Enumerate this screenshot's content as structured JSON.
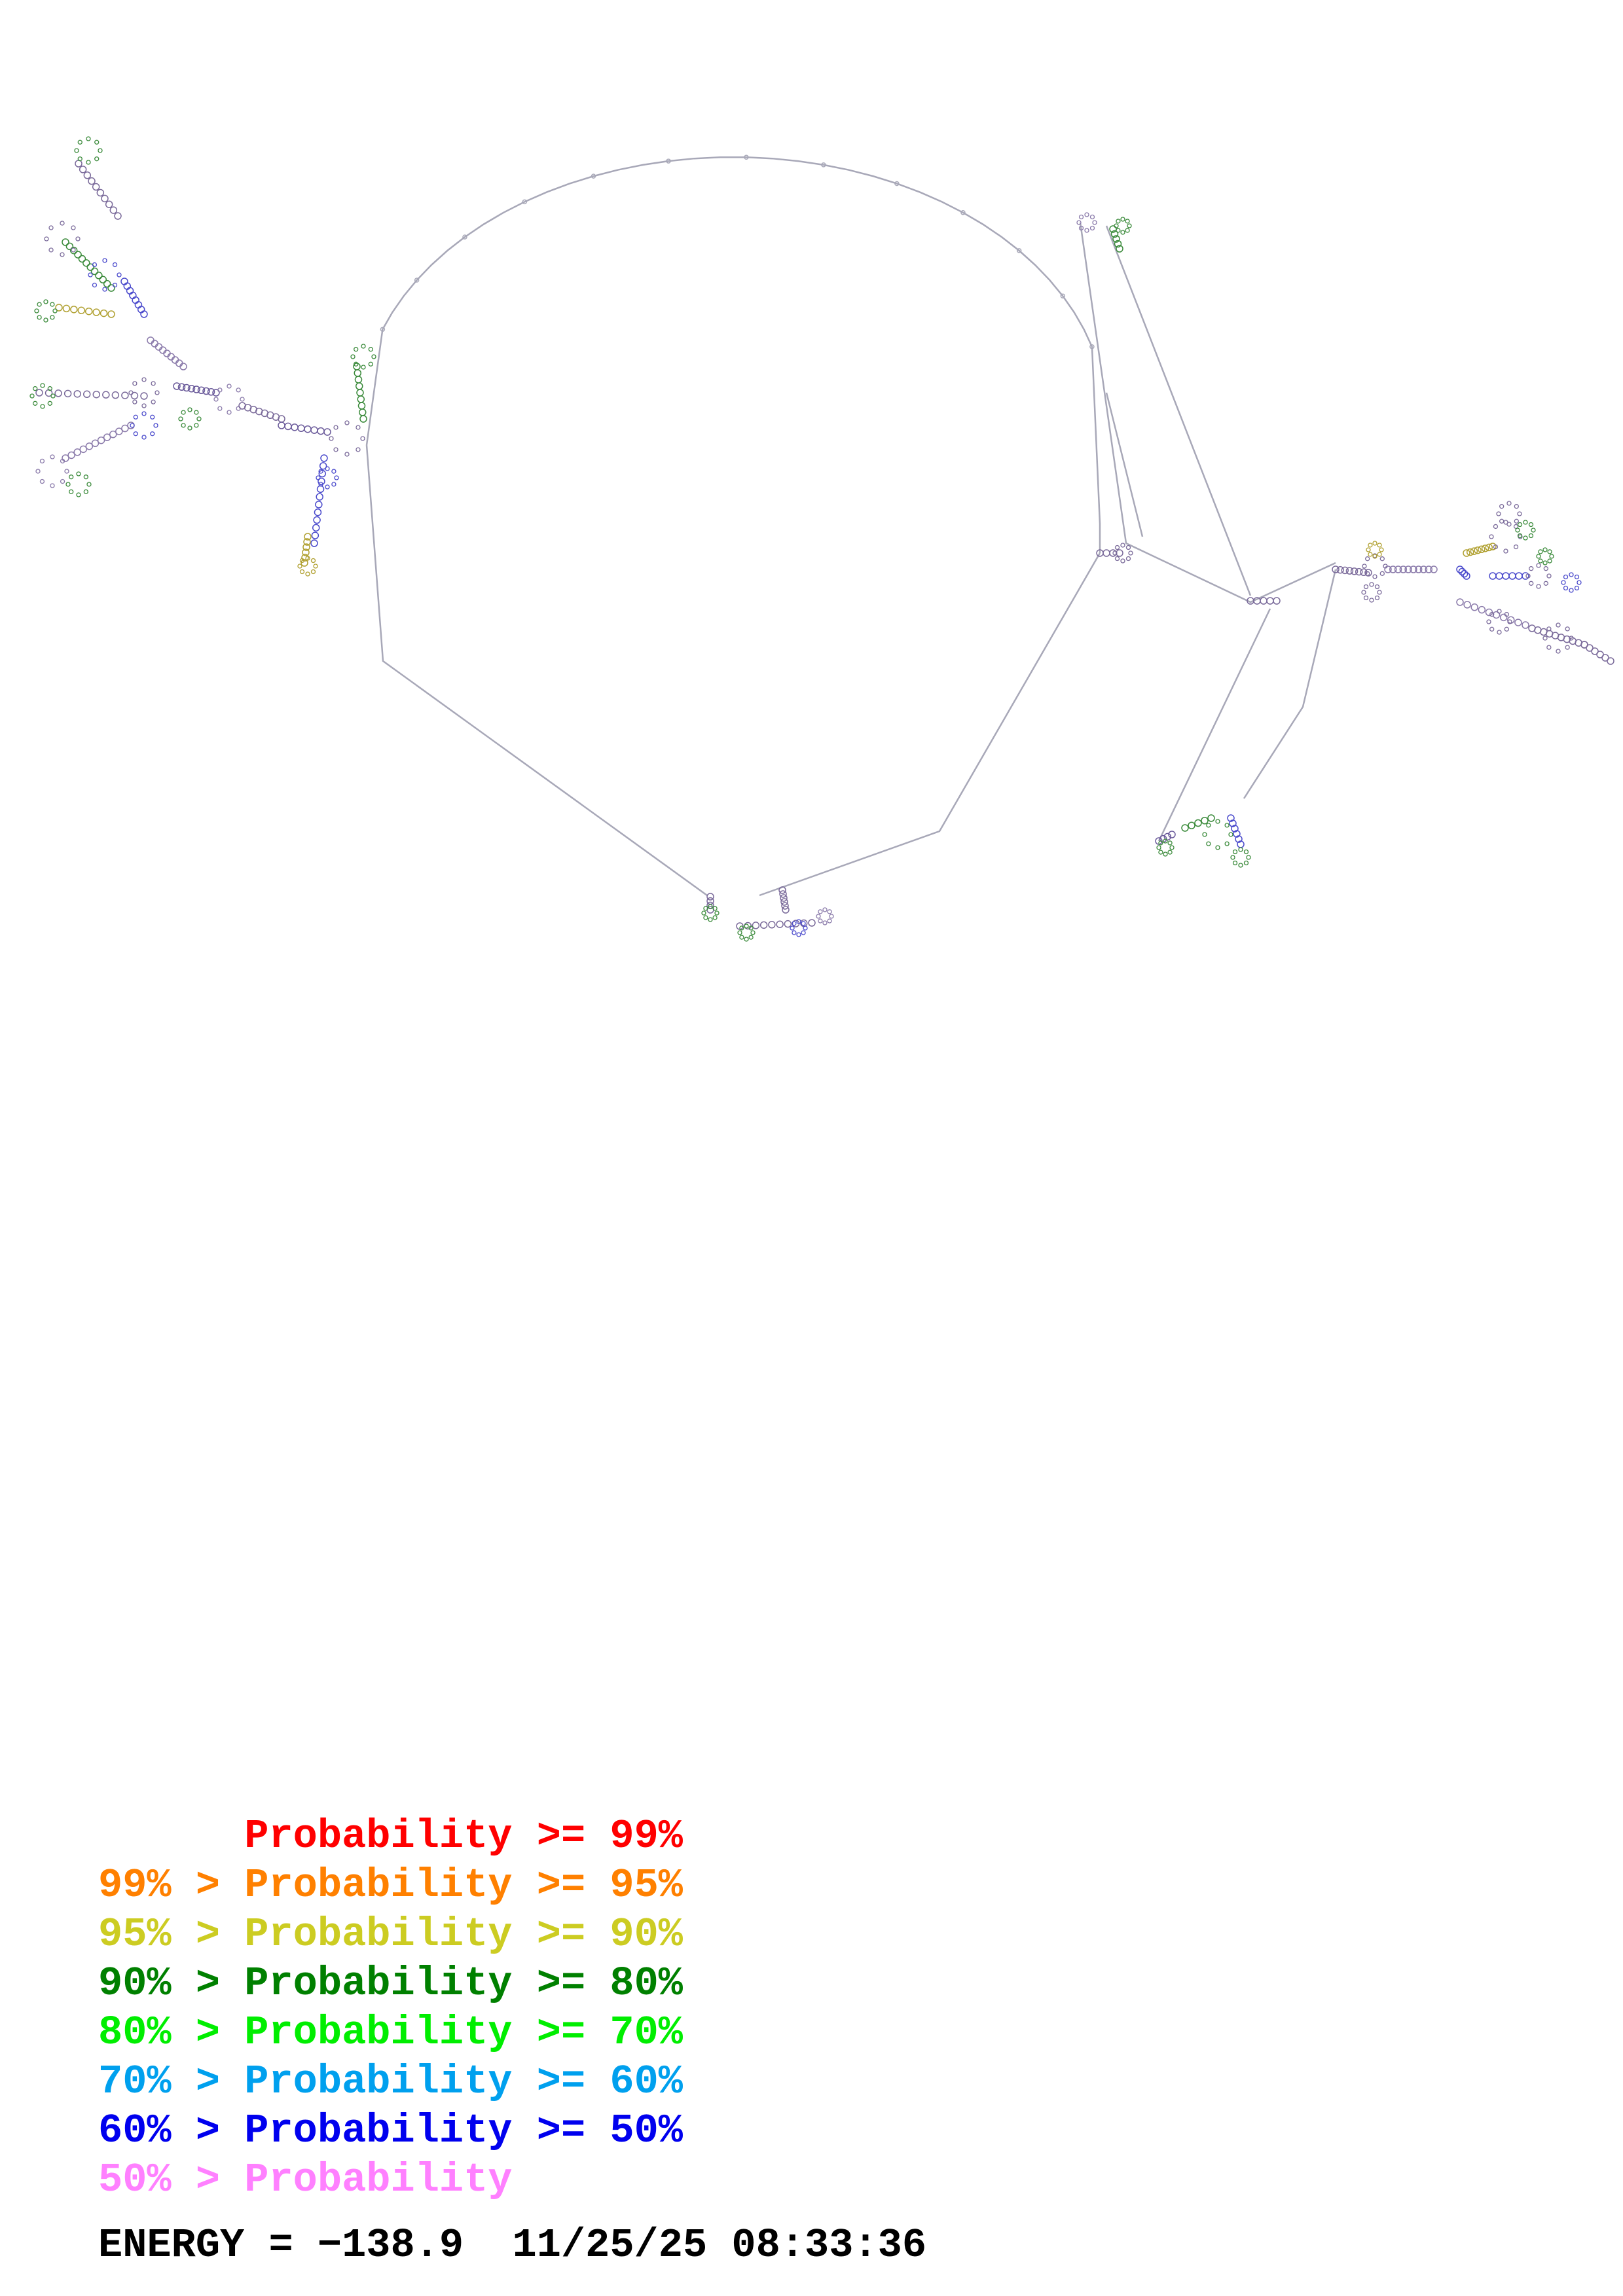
{
  "legend": {
    "lines": [
      {
        "prefix": "",
        "middle": "Probability",
        "suffix": ">= 99%",
        "color": "#ff0000"
      },
      {
        "prefix": "99% >",
        "middle": "Probability",
        "suffix": ">= 95%",
        "color": "#ff8000"
      },
      {
        "prefix": "95% >",
        "middle": "Probability",
        "suffix": ">= 90%",
        "color": "#cccc22"
      },
      {
        "prefix": "90% >",
        "middle": "Probability",
        "suffix": ">= 80%",
        "color": "#008000"
      },
      {
        "prefix": "80% >",
        "middle": "Probability",
        "suffix": ">= 70%",
        "color": "#00ee00"
      },
      {
        "prefix": "70% >",
        "middle": "Probability",
        "suffix": ">= 60%",
        "color": "#00a0ee"
      },
      {
        "prefix": "60% >",
        "middle": "Probability",
        "suffix": ">= 50%",
        "color": "#0000ee"
      },
      {
        "prefix": "50% >",
        "middle": "Probability",
        "suffix": "",
        "color": "#ff80ff"
      }
    ]
  },
  "footer": {
    "energy_label": "ENERGY = ",
    "energy_value": "−138.9",
    "timestamp": "11/25/25 08:33:36"
  },
  "colors": {
    "backbone": "#a8a8b8",
    "base_pair_default": "#7a6a9a"
  }
}
